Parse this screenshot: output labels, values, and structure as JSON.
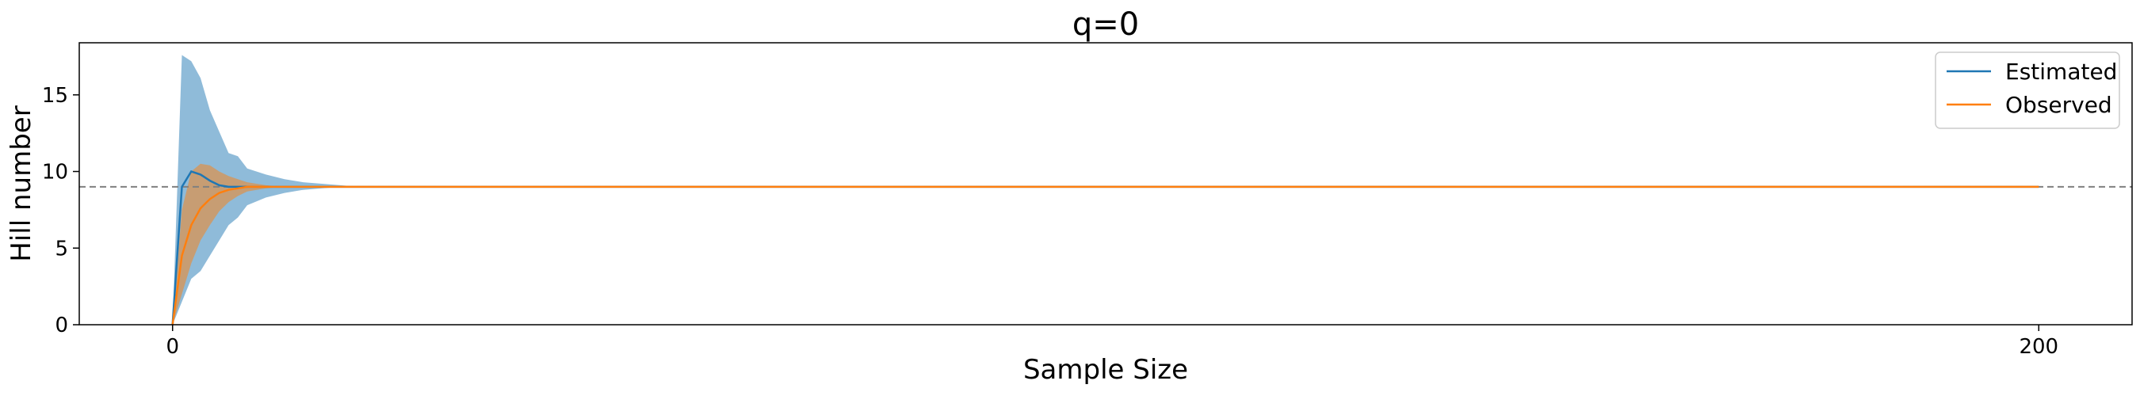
{
  "chart_data": {
    "type": "line",
    "title": "q=0",
    "xlabel": "Sample Size",
    "ylabel": "Hill number",
    "xlim": [
      -10,
      210
    ],
    "ylim": [
      0,
      18.4
    ],
    "xticks": [
      0,
      200
    ],
    "yticks": [
      0,
      5,
      10,
      15
    ],
    "grid": false,
    "legend": {
      "placement": "top-right",
      "entries": [
        "Estimated",
        "Observed"
      ]
    },
    "reference_line": {
      "y": 9,
      "style": "dashed",
      "color": "#808080"
    },
    "series": [
      {
        "name": "Estimated",
        "color": "#1f77b4",
        "band_color": "#1f77b4",
        "band_opacity": 0.5,
        "x": [
          0,
          1,
          2,
          3,
          4,
          5,
          6,
          7,
          8,
          10,
          12,
          14,
          16,
          18,
          20,
          200
        ],
        "y": [
          0,
          9.0,
          10.0,
          9.8,
          9.4,
          9.1,
          9.0,
          9.0,
          9.0,
          9.0,
          9.0,
          9.0,
          9.0,
          9.0,
          9.0,
          9.0
        ],
        "lower": [
          0,
          1.5,
          3.0,
          3.5,
          4.5,
          5.5,
          6.5,
          7.0,
          7.8,
          8.3,
          8.6,
          8.8,
          8.9,
          9.0,
          9.0,
          9.0
        ],
        "upper": [
          0,
          17.6,
          17.2,
          16.1,
          14.0,
          12.6,
          11.2,
          11.0,
          10.2,
          9.8,
          9.5,
          9.3,
          9.2,
          9.1,
          9.0,
          9.0
        ]
      },
      {
        "name": "Observed",
        "color": "#ff7f0e",
        "band_color": "#ff7f0e",
        "band_opacity": 0.5,
        "x": [
          0,
          1,
          2,
          3,
          4,
          5,
          6,
          7,
          8,
          10,
          12,
          14,
          16,
          18,
          20,
          200
        ],
        "y": [
          0,
          4.5,
          6.5,
          7.6,
          8.2,
          8.6,
          8.8,
          8.9,
          9.0,
          9.0,
          9.0,
          9.0,
          9.0,
          9.0,
          9.0,
          9.0
        ],
        "lower": [
          0,
          2.0,
          4.0,
          5.5,
          6.5,
          7.4,
          8.0,
          8.4,
          8.7,
          8.9,
          9.0,
          9.0,
          9.0,
          9.0,
          9.0,
          9.0
        ],
        "upper": [
          0,
          7.5,
          10.0,
          10.5,
          10.4,
          10.0,
          9.7,
          9.5,
          9.3,
          9.1,
          9.0,
          9.0,
          9.0,
          9.0,
          9.0,
          9.0
        ]
      }
    ]
  }
}
